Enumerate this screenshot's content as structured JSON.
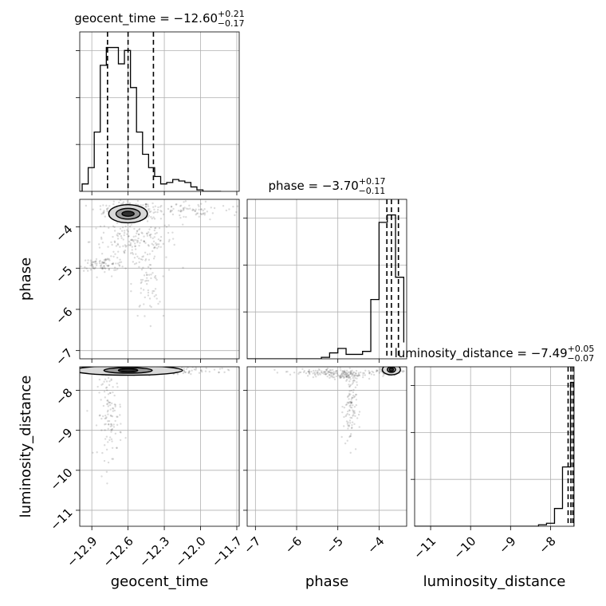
{
  "chart_data": {
    "type": "corner",
    "parameters": [
      "geocent_time",
      "phase",
      "luminosity_distance"
    ],
    "axis_labels": {
      "geocent_time": "geocent_time",
      "phase": "phase",
      "luminosity_distance": "luminosity_distance"
    },
    "ranges": {
      "geocent_time": [
        -13.0,
        -11.68
      ],
      "phase": [
        -7.2,
        -3.33
      ],
      "luminosity_distance": [
        -11.4,
        -7.41
      ]
    },
    "ticks": {
      "geocent_time": [
        "−12.9",
        "−12.6",
        "−12.3",
        "−12.0",
        "−11.7"
      ],
      "phase": [
        "−7",
        "−6",
        "−5",
        "−4"
      ],
      "luminosity_distance": [
        "−11",
        "−10",
        "−9",
        "−8"
      ]
    },
    "tick_values": {
      "geocent_time": [
        -12.9,
        -12.6,
        -12.3,
        -12.0,
        -11.7
      ],
      "phase": [
        -7,
        -6,
        -5,
        -4
      ],
      "luminosity_distance": [
        -11,
        -10,
        -9,
        -8
      ]
    },
    "titles": [
      {
        "param": "geocent_time",
        "name": "geocent_time",
        "value": "−12.60",
        "plus": "+0.21",
        "minus": "−0.17"
      },
      {
        "param": "phase",
        "name": "phase",
        "value": "−3.70",
        "plus": "+0.17",
        "minus": "−0.11"
      },
      {
        "param": "luminosity_distance",
        "name": "luminosity_distance",
        "value": "−7.49",
        "plus": "+0.05",
        "minus": "−0.07"
      }
    ],
    "quantiles": {
      "geocent_time": [
        -12.77,
        -12.6,
        -12.39
      ],
      "phase": [
        -3.81,
        -3.7,
        -3.53
      ],
      "luminosity_distance": [
        -7.56,
        -7.49,
        -7.44
      ]
    },
    "histograms": {
      "geocent_time": {
        "edges": [
          -12.98,
          -12.93,
          -12.88,
          -12.83,
          -12.78,
          -12.73,
          -12.68,
          -12.63,
          -12.58,
          -12.53,
          -12.48,
          -12.43,
          -12.38,
          -12.33,
          -12.28,
          -12.23,
          -12.18,
          -12.13,
          -12.08,
          -12.03,
          -11.98,
          -11.93,
          -11.88,
          -11.83
        ],
        "counts": [
          0.05,
          0.16,
          0.4,
          0.85,
          0.97,
          0.97,
          0.86,
          0.95,
          0.7,
          0.4,
          0.25,
          0.16,
          0.1,
          0.05,
          0.06,
          0.08,
          0.07,
          0.06,
          0.03,
          0.01,
          0.0,
          0.0,
          0.0
        ]
      },
      "phase": {
        "edges": [
          -5.4,
          -5.2,
          -5.0,
          -4.8,
          -4.6,
          -4.4,
          -4.2,
          -4.0,
          -3.8,
          -3.6,
          -3.4
        ],
        "counts": [
          0.01,
          0.04,
          0.07,
          0.03,
          0.03,
          0.05,
          0.4,
          0.92,
          0.97,
          0.55,
          0.11
        ]
      },
      "luminosity_distance": {
        "edges": [
          -8.3,
          -8.1,
          -7.9,
          -7.7,
          -7.5,
          -7.41
        ],
        "counts": [
          0.01,
          0.02,
          0.12,
          0.4,
          0.97
        ]
      }
    },
    "contour_levels": [
      0.39,
      0.86,
      0.99
    ],
    "grid": true
  }
}
